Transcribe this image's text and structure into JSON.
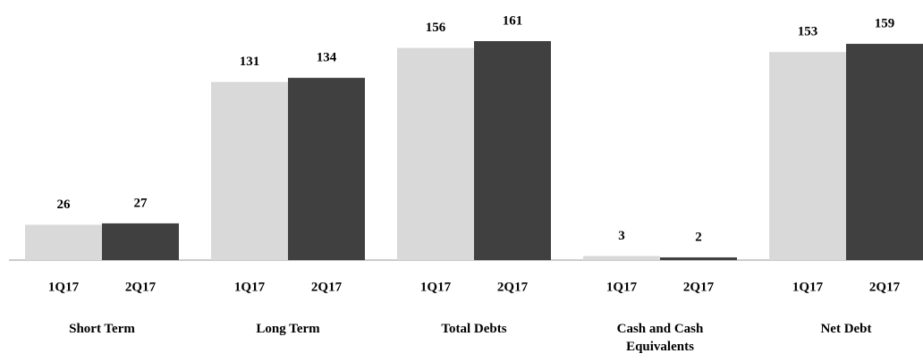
{
  "chart_data": {
    "type": "bar",
    "categories": [
      "Short Term",
      "Long Term",
      "Total Debts",
      "Cash and Cash Equivalents",
      "Net Debt"
    ],
    "series": [
      {
        "name": "1Q17",
        "color": "#d9d9d9",
        "values": [
          26,
          131,
          156,
          3,
          153
        ]
      },
      {
        "name": "2Q17",
        "color": "#404040",
        "values": [
          27,
          134,
          161,
          2,
          159
        ]
      }
    ]
  }
}
